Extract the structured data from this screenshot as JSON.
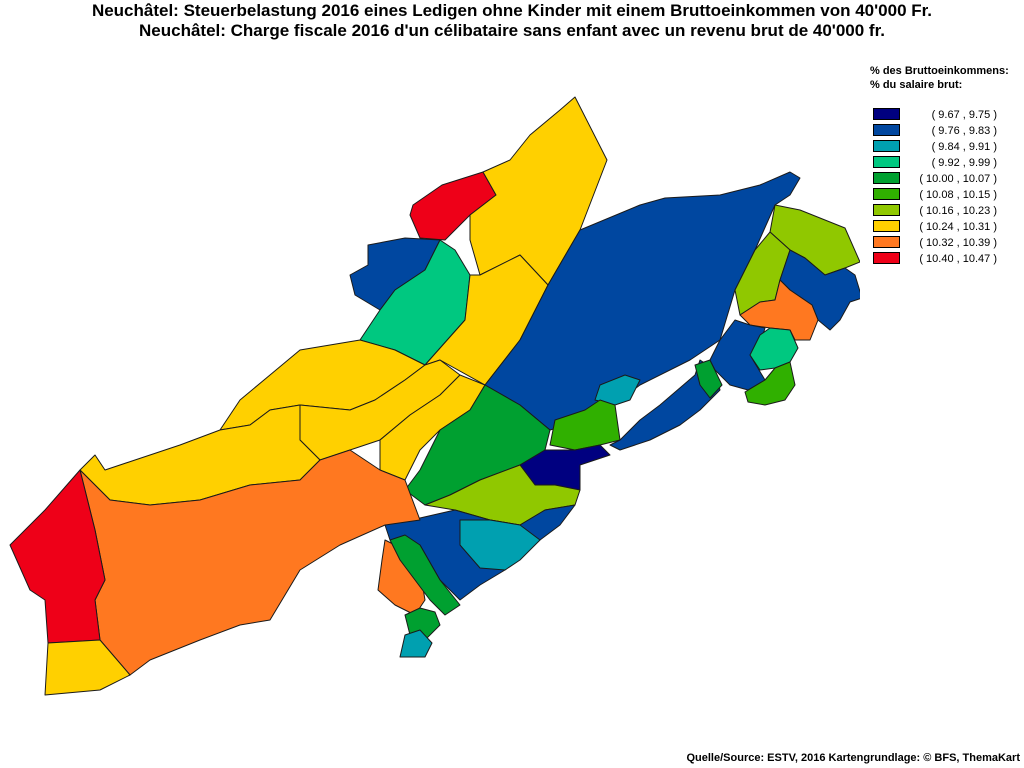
{
  "title_de": "Neuchâtel: Steuerbelastung 2016 eines Ledigen ohne Kinder mit einem Bruttoeinkommen von 40'000 Fr.",
  "title_fr": "Neuchâtel: Charge fiscale 2016 d'un célibataire sans enfant avec un revenu brut de 40'000 fr.",
  "legend": {
    "title_de": "% des Bruttoeinkommens:",
    "title_fr": "% du salaire brut:",
    "classes": [
      {
        "range": "( 9.67 , 9.75 )",
        "color": "#000080"
      },
      {
        "range": "( 9.76 , 9.83 )",
        "color": "#0047a0"
      },
      {
        "range": "( 9.84 , 9.91 )",
        "color": "#00a0b0"
      },
      {
        "range": "( 9.92 , 9.99 )",
        "color": "#00c880"
      },
      {
        "range": "( 10.00 , 10.07 )",
        "color": "#00a030"
      },
      {
        "range": "( 10.08 , 10.15 )",
        "color": "#30b000"
      },
      {
        "range": "( 10.16 , 10.23 )",
        "color": "#90c800"
      },
      {
        "range": "( 10.24 , 10.31 )",
        "color": "#ffd000"
      },
      {
        "range": "( 10.32 , 10.39 )",
        "color": "#ff7820"
      },
      {
        "range": "( 10.40 , 10.47 )",
        "color": "#ee0018"
      }
    ]
  },
  "source": "Quelle/Source: ESTV, 2016 Kartengrundlage: © BFS, ThemaKart"
}
